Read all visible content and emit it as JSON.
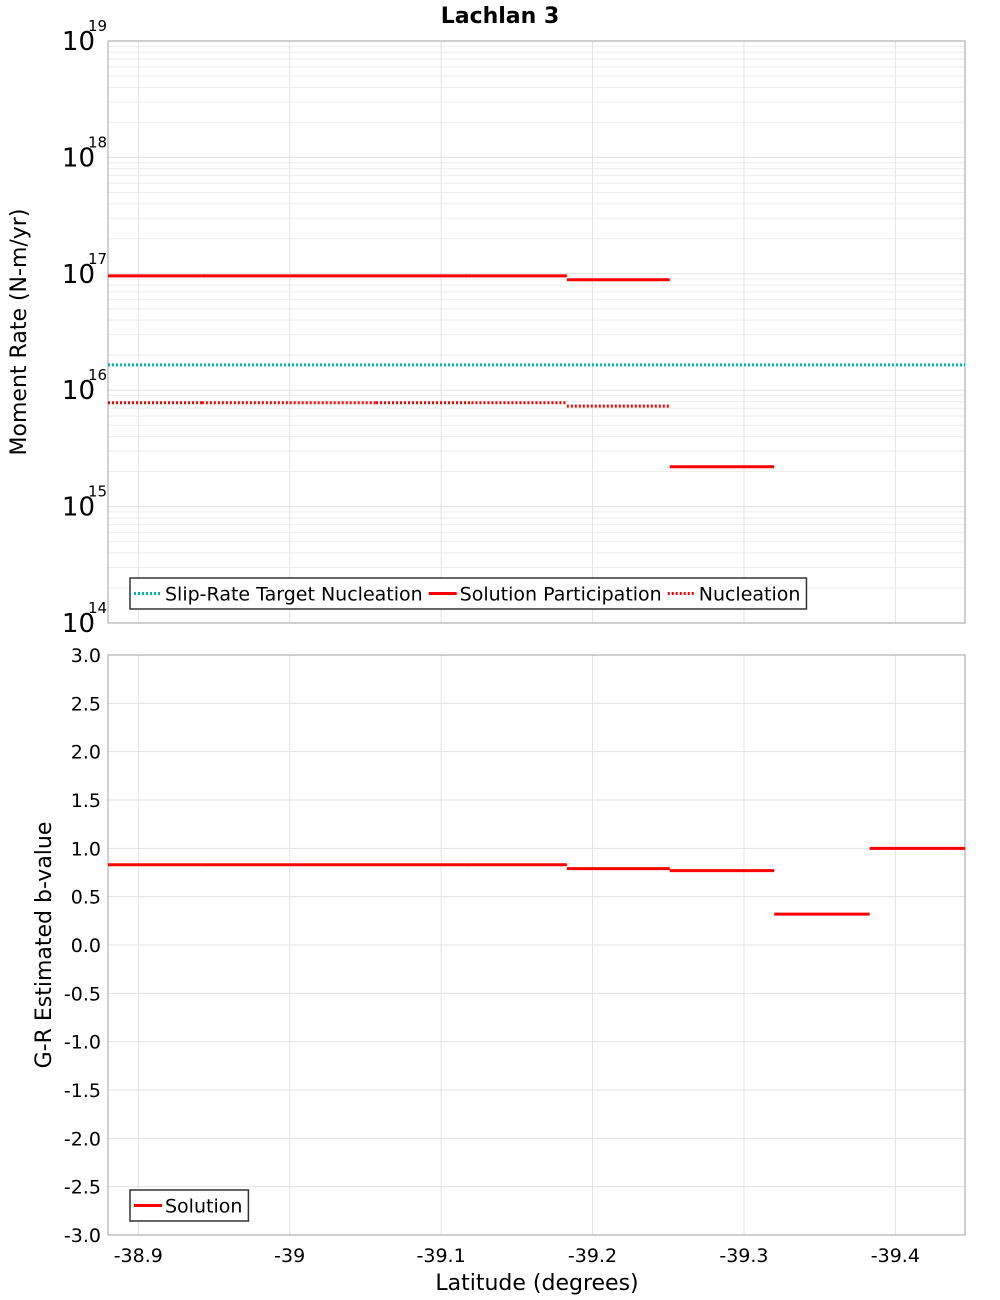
{
  "chart_data": {
    "title": "Lachlan 3",
    "x": {
      "label": "Latitude (degrees)",
      "lim": [
        -38.88,
        -39.446
      ],
      "reversed": true,
      "ticks": [
        -38.9,
        -39.0,
        -39.1,
        -39.2,
        -39.3,
        -39.4
      ],
      "tick_labels": [
        "-38.9",
        "-39",
        "-39.1",
        "-39.2",
        "-39.3",
        "-39.4"
      ]
    },
    "panels": [
      {
        "type": "line",
        "scale": "log",
        "ylabel": "Moment Rate (N-m/yr)",
        "ylim": [
          100000000000000.0,
          1e+19
        ],
        "ticks": [
          {
            "base": "10",
            "exp": "14",
            "value": 14
          },
          {
            "base": "10",
            "exp": "15",
            "value": 15
          },
          {
            "base": "10",
            "exp": "16",
            "value": 16
          },
          {
            "base": "10",
            "exp": "17",
            "value": 17
          },
          {
            "base": "10",
            "exp": "18",
            "value": 18
          },
          {
            "base": "10",
            "exp": "19",
            "value": 19
          }
        ],
        "grid": true,
        "legend": "bottom-left",
        "series": [
          {
            "name": "Slip-Rate Target Nucleation",
            "color": "#00b4b4",
            "style": "dotted",
            "segments": [
              {
                "x0": -38.88,
                "x1": -39.446,
                "y": 1.65e+16
              }
            ]
          },
          {
            "name": "Solution Participation",
            "color": "#ff0000",
            "style": "solid",
            "segments": [
              {
                "x0": -38.88,
                "x1": -38.942,
                "y": 9.6e+16
              },
              {
                "x0": -38.942,
                "x1": -39.0,
                "y": 9.6e+16
              },
              {
                "x0": -39.0,
                "x1": -39.057,
                "y": 9.6e+16
              },
              {
                "x0": -39.057,
                "x1": -39.12,
                "y": 9.6e+16
              },
              {
                "x0": -39.12,
                "x1": -39.183,
                "y": 9.6e+16
              },
              {
                "x0": -39.183,
                "x1": -39.251,
                "y": 8.9e+16
              },
              {
                "x0": -39.251,
                "x1": -39.32,
                "y": 2200000000000000.0
              }
            ]
          },
          {
            "name": "Nucleation",
            "color": "#ff0000",
            "style": "dotted",
            "segments": [
              {
                "x0": -38.88,
                "x1": -38.942,
                "y": 7800000000000000.0
              },
              {
                "x0": -38.942,
                "x1": -39.0,
                "y": 7800000000000000.0
              },
              {
                "x0": -39.0,
                "x1": -39.057,
                "y": 7800000000000000.0
              },
              {
                "x0": -39.057,
                "x1": -39.12,
                "y": 7800000000000000.0
              },
              {
                "x0": -39.12,
                "x1": -39.183,
                "y": 7800000000000000.0
              },
              {
                "x0": -39.183,
                "x1": -39.251,
                "y": 7300000000000000.0
              }
            ]
          }
        ]
      },
      {
        "type": "line",
        "scale": "linear",
        "ylabel": "G-R Estimated b-value",
        "ylim": [
          -3.0,
          3.0
        ],
        "ticks": [
          {
            "label": "3.0",
            "value": 3.0
          },
          {
            "label": "2.5",
            "value": 2.5
          },
          {
            "label": "2.0",
            "value": 2.0
          },
          {
            "label": "1.5",
            "value": 1.5
          },
          {
            "label": "1.0",
            "value": 1.0
          },
          {
            "label": "0.5",
            "value": 0.5
          },
          {
            "label": "0.0",
            "value": 0.0
          },
          {
            "label": "-0.5",
            "value": -0.5
          },
          {
            "label": "-1.0",
            "value": -1.0
          },
          {
            "label": "-1.5",
            "value": -1.5
          },
          {
            "label": "-2.0",
            "value": -2.0
          },
          {
            "label": "-2.5",
            "value": -2.5
          },
          {
            "label": "-3.0",
            "value": -3.0
          }
        ],
        "grid": true,
        "legend": "bottom-left",
        "series": [
          {
            "name": "Solution",
            "color": "#ff0000",
            "style": "solid",
            "segments": [
              {
                "x0": -38.88,
                "x1": -38.942,
                "y": 0.83
              },
              {
                "x0": -38.942,
                "x1": -39.0,
                "y": 0.83
              },
              {
                "x0": -39.0,
                "x1": -39.057,
                "y": 0.83
              },
              {
                "x0": -39.057,
                "x1": -39.12,
                "y": 0.83
              },
              {
                "x0": -39.12,
                "x1": -39.183,
                "y": 0.83
              },
              {
                "x0": -39.183,
                "x1": -39.251,
                "y": 0.79
              },
              {
                "x0": -39.251,
                "x1": -39.32,
                "y": 0.77
              },
              {
                "x0": -39.32,
                "x1": -39.383,
                "y": 0.32
              },
              {
                "x0": -39.383,
                "x1": -39.446,
                "y": 1.0
              }
            ]
          }
        ]
      }
    ]
  }
}
